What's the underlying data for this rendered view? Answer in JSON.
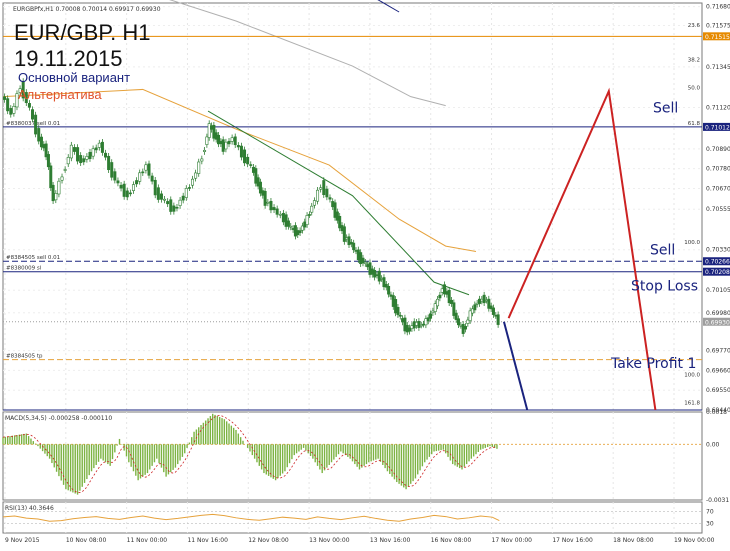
{
  "header": {
    "pair_line": "EUR/GBP. H1",
    "date_line": "19.11.2015",
    "variant_main": "Основной вариант",
    "variant_alt": "Альтернатива",
    "info_line": "EURGBPfx,H1  0.70008 0.70014 0.69917 0.69930"
  },
  "chart_data": [
    {
      "type": "candlestick",
      "title": "EUR/GBP. H1",
      "subtitle": "19.11.2015",
      "y_ticks": [
        "0.71680",
        "0.71575",
        "0.71345",
        "0.71120",
        "0.70890",
        "0.70780",
        "0.70670",
        "0.70555",
        "0.70330",
        "0.70105",
        "0.69980",
        "0.69770",
        "0.69660",
        "0.69550",
        "0.69440"
      ],
      "ylim": [
        0.6944,
        0.717
      ],
      "x_ticks": [
        "9 Nov 2015",
        "10 Nov 08:00",
        "11 Nov 00:00",
        "11 Nov 16:00",
        "12 Nov 08:00",
        "13 Nov 00:00",
        "13 Nov 16:00",
        "16 Nov 08:00",
        "17 Nov 00:00",
        "17 Nov 16:00",
        "18 Nov 08:00",
        "19 Nov 00:00"
      ],
      "price_path": [
        [
          0,
          0.7119
        ],
        [
          4,
          0.7108
        ],
        [
          8,
          0.7124
        ],
        [
          12,
          0.7111
        ],
        [
          16,
          0.7094
        ],
        [
          19,
          0.7087
        ],
        [
          22,
          0.706
        ],
        [
          26,
          0.7075
        ],
        [
          30,
          0.709
        ],
        [
          34,
          0.7082
        ],
        [
          38,
          0.7086
        ],
        [
          42,
          0.7092
        ],
        [
          46,
          0.7079
        ],
        [
          50,
          0.7069
        ],
        [
          54,
          0.7063
        ],
        [
          58,
          0.7072
        ],
        [
          62,
          0.708
        ],
        [
          66,
          0.7065
        ],
        [
          70,
          0.706
        ],
        [
          74,
          0.7055
        ],
        [
          78,
          0.7063
        ],
        [
          82,
          0.7072
        ],
        [
          86,
          0.7085
        ],
        [
          89,
          0.7102
        ],
        [
          92,
          0.7095
        ],
        [
          95,
          0.709
        ],
        [
          99,
          0.7095
        ],
        [
          103,
          0.7086
        ],
        [
          107,
          0.7079
        ],
        [
          110,
          0.7069
        ],
        [
          113,
          0.706
        ],
        [
          117,
          0.7055
        ],
        [
          121,
          0.705
        ],
        [
          124,
          0.7045
        ],
        [
          127,
          0.7042
        ],
        [
          130,
          0.7048
        ],
        [
          133,
          0.7057
        ],
        [
          137,
          0.7069
        ],
        [
          141,
          0.706
        ],
        [
          144,
          0.705
        ],
        [
          147,
          0.704
        ],
        [
          150,
          0.7036
        ],
        [
          153,
          0.7029
        ],
        [
          156,
          0.7025
        ],
        [
          159,
          0.702
        ],
        [
          162,
          0.7018
        ],
        [
          165,
          0.7012
        ],
        [
          168,
          0.7003
        ],
        [
          171,
          0.6995
        ],
        [
          174,
          0.6988
        ],
        [
          177,
          0.6992
        ],
        [
          180,
          0.6991
        ],
        [
          183,
          0.6995
        ],
        [
          186,
          0.7002
        ],
        [
          189,
          0.7012
        ],
        [
          192,
          0.7006
        ],
        [
          195,
          0.6994
        ],
        [
          198,
          0.6988
        ],
        [
          201,
          0.6998
        ],
        [
          204,
          0.7004
        ],
        [
          207,
          0.7006
        ],
        [
          210,
          0.7
        ],
        [
          213,
          0.6993
        ]
      ],
      "moving_averages": [
        {
          "color": "#e6a23c",
          "points": [
            [
              0,
              0.7118
            ],
            [
              60,
              0.7122
            ],
            [
              100,
              0.71
            ],
            [
              140,
              0.708
            ],
            [
              170,
              0.705
            ],
            [
              190,
              0.7035
            ],
            [
              203,
              0.7032
            ]
          ]
        },
        {
          "color": "#b0b0b0",
          "points": [
            [
              40,
              0.7185
            ],
            [
              100,
              0.716
            ],
            [
              150,
              0.7135
            ],
            [
              175,
              0.7118
            ],
            [
              190,
              0.7113
            ]
          ]
        },
        {
          "color": "#1a237e",
          "points": [
            [
              70,
              0.7205
            ],
            [
              150,
              0.718
            ],
            [
              170,
              0.7165
            ]
          ]
        },
        {
          "color": "#2e7d32",
          "points": [
            [
              88,
              0.711
            ],
            [
              150,
              0.7063
            ],
            [
              185,
              0.7015
            ],
            [
              200,
              0.7008
            ]
          ]
        }
      ],
      "levels": [
        {
          "price": 0.71515,
          "color": "#e68a00",
          "style": "solid",
          "tag": "0.71515",
          "left_label": ""
        },
        {
          "price": 0.71012,
          "color": "#1a237e",
          "style": "solid",
          "tag": "0.71012",
          "left_label": "#8380037 sell 0.01"
        },
        {
          "price": 0.70266,
          "color": "#1a237e",
          "style": "dashed",
          "tag": "0.70266",
          "left_label": "#8384505 sell 0.01"
        },
        {
          "price": 0.70208,
          "color": "#1a237e",
          "style": "solid",
          "tag": "0.70208",
          "left_label": "#8380009 sl"
        },
        {
          "price": 0.6993,
          "color": "#9e9e9e",
          "style": "dotted",
          "tag": "0.69930",
          "left_label": ""
        },
        {
          "price": 0.6972,
          "color": "#e6a23c",
          "style": "dashed",
          "tag": "",
          "left_label": "#8384505 tp"
        },
        {
          "price": 0.6944,
          "color": "#1a237e",
          "style": "solid",
          "tag": "",
          "left_label": ""
        }
      ],
      "fib_labels": [
        {
          "text": "23.6",
          "price": 0.7156
        },
        {
          "text": "38.2",
          "price": 0.7137
        },
        {
          "text": "50.0",
          "price": 0.71215
        },
        {
          "text": "61.8",
          "price": 0.71018
        },
        {
          "text": "100.0",
          "price": 0.70355
        },
        {
          "text": "161.8",
          "price": 0.69465
        },
        {
          "text": "100.0",
          "price": 0.6962
        }
      ],
      "scenario_paths": [
        {
          "name": "Основной вариант",
          "color": "#1a237e",
          "points": [
            [
              215,
              0.6993
            ],
            [
              225,
              0.6944
            ]
          ]
        },
        {
          "name": "Альтернатива",
          "color": "#cc2222",
          "points": [
            [
              217,
              0.6995
            ],
            [
              260,
              0.7121
            ],
            [
              280,
              0.6944
            ]
          ]
        }
      ],
      "annotations": [
        {
          "text": "Sell",
          "price": 0.7112
        },
        {
          "text": "Sell",
          "price": 0.7033
        },
        {
          "text": "Stop Loss",
          "price": 0.7013
        },
        {
          "text": "Take Profit 1",
          "price": 0.697
        }
      ]
    },
    {
      "type": "bar",
      "title": "MACD(5,34,5) -0.000258 -0.000110",
      "y_ticks": [
        "0.0018",
        "0.00",
        "-0.0031"
      ],
      "ylim": [
        -0.0031,
        0.0018
      ],
      "histogram": [
        [
          0,
          0.0004
        ],
        [
          10,
          0.0006
        ],
        [
          20,
          -0.0008
        ],
        [
          27,
          -0.0025
        ],
        [
          32,
          -0.0028
        ],
        [
          38,
          -0.0015
        ],
        [
          42,
          -0.0008
        ],
        [
          46,
          -0.0012
        ],
        [
          50,
          0.0003
        ],
        [
          54,
          -0.001
        ],
        [
          58,
          -0.002
        ],
        [
          62,
          -0.0016
        ],
        [
          66,
          -0.0008
        ],
        [
          70,
          -0.0018
        ],
        [
          74,
          -0.0013
        ],
        [
          78,
          -0.0005
        ],
        [
          82,
          0.0007
        ],
        [
          86,
          0.0012
        ],
        [
          90,
          0.0017
        ],
        [
          95,
          0.0014
        ],
        [
          100,
          0.0008
        ],
        [
          104,
          0.0
        ],
        [
          108,
          -0.0008
        ],
        [
          112,
          -0.0016
        ],
        [
          117,
          -0.002
        ],
        [
          121,
          -0.0015
        ],
        [
          125,
          -0.0006
        ],
        [
          129,
          -0.0002
        ],
        [
          133,
          -0.0008
        ],
        [
          137,
          -0.0016
        ],
        [
          141,
          -0.001
        ],
        [
          145,
          -0.0004
        ],
        [
          149,
          -0.0008
        ],
        [
          153,
          -0.0014
        ],
        [
          157,
          -0.001
        ],
        [
          161,
          -0.0008
        ],
        [
          165,
          -0.0015
        ],
        [
          169,
          -0.0021
        ],
        [
          173,
          -0.0025
        ],
        [
          177,
          -0.0019
        ],
        [
          181,
          -0.001
        ],
        [
          185,
          -0.0004
        ],
        [
          189,
          -0.0003
        ],
        [
          193,
          -0.0011
        ],
        [
          197,
          -0.0014
        ],
        [
          201,
          -0.0008
        ],
        [
          205,
          -0.0003
        ],
        [
          209,
          -0.0001
        ],
        [
          213,
          -0.0003
        ]
      ],
      "signal_color": "#cc2222"
    },
    {
      "type": "line",
      "title": "RSI(13) 40.3646",
      "y_ticks": [
        "70",
        "30"
      ],
      "ylim": [
        0,
        100
      ],
      "values": [
        [
          0,
          52
        ],
        [
          5,
          55
        ],
        [
          10,
          48
        ],
        [
          15,
          45
        ],
        [
          20,
          38
        ],
        [
          25,
          40
        ],
        [
          30,
          46
        ],
        [
          35,
          50
        ],
        [
          40,
          53
        ],
        [
          45,
          47
        ],
        [
          50,
          44
        ],
        [
          55,
          50
        ],
        [
          60,
          55
        ],
        [
          65,
          48
        ],
        [
          70,
          43
        ],
        [
          75,
          47
        ],
        [
          80,
          52
        ],
        [
          85,
          57
        ],
        [
          90,
          60
        ],
        [
          95,
          56
        ],
        [
          100,
          49
        ],
        [
          105,
          44
        ],
        [
          110,
          41
        ],
        [
          115,
          46
        ],
        [
          120,
          51
        ],
        [
          125,
          48
        ],
        [
          130,
          44
        ],
        [
          135,
          52
        ],
        [
          140,
          47
        ],
        [
          145,
          43
        ],
        [
          150,
          49
        ],
        [
          155,
          54
        ],
        [
          160,
          47
        ],
        [
          165,
          41
        ],
        [
          170,
          38
        ],
        [
          175,
          45
        ],
        [
          180,
          50
        ],
        [
          185,
          57
        ],
        [
          190,
          53
        ],
        [
          195,
          45
        ],
        [
          200,
          49
        ],
        [
          205,
          55
        ],
        [
          210,
          51
        ],
        [
          213,
          40
        ]
      ],
      "color": "#e6a23c"
    }
  ]
}
